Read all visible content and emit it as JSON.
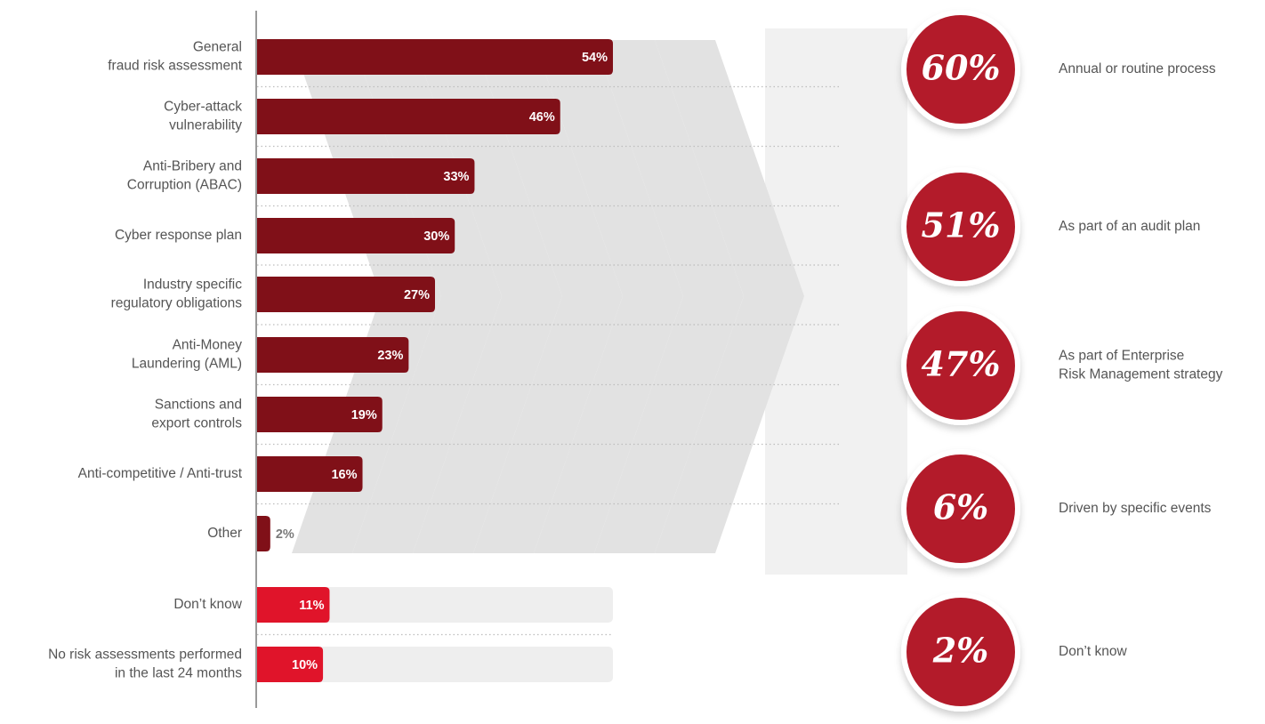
{
  "colors": {
    "bar_dark": "#801018",
    "bar_bright": "#e0142a",
    "circle": "#b31b2a",
    "track": "#eeeeee",
    "chevron": "#e2e2e2",
    "band": "#f1f1f1",
    "label": "#555555"
  },
  "chart_data": [
    {
      "type": "bar",
      "orientation": "horizontal",
      "categories": [
        "General\nfraud risk assessment",
        "Cyber-attack\nvulnerability",
        "Anti-Bribery and\nCorruption (ABAC)",
        "Cyber response plan",
        "Industry specific\nregulatory obligations",
        "Anti-Money\nLaundering (AML)",
        "Sanctions and\nexport controls",
        "Anti-competitive / Anti-trust",
        "Other",
        "Don’t know",
        "No risk assessments performed\nin the last 24 months"
      ],
      "values": [
        54,
        46,
        33,
        30,
        27,
        23,
        19,
        16,
        2,
        11,
        10
      ],
      "value_labels": [
        "54%",
        "46%",
        "33%",
        "30%",
        "27%",
        "23%",
        "19%",
        "16%",
        "2%",
        "11%",
        "10%"
      ],
      "highlight": [
        false,
        false,
        false,
        false,
        false,
        false,
        false,
        false,
        false,
        true,
        true
      ],
      "xlim": [
        0,
        54
      ],
      "grid": false,
      "legend": "none"
    },
    {
      "type": "bubble",
      "values": [
        60,
        51,
        47,
        6,
        2
      ],
      "value_labels": [
        "60%",
        "51%",
        "47%",
        "6%",
        "2%"
      ],
      "labels": [
        "Annual or routine process",
        "As part of an audit plan",
        "As part of Enterprise\nRisk Management strategy",
        "Driven by specific events",
        "Don’t know"
      ]
    }
  ]
}
